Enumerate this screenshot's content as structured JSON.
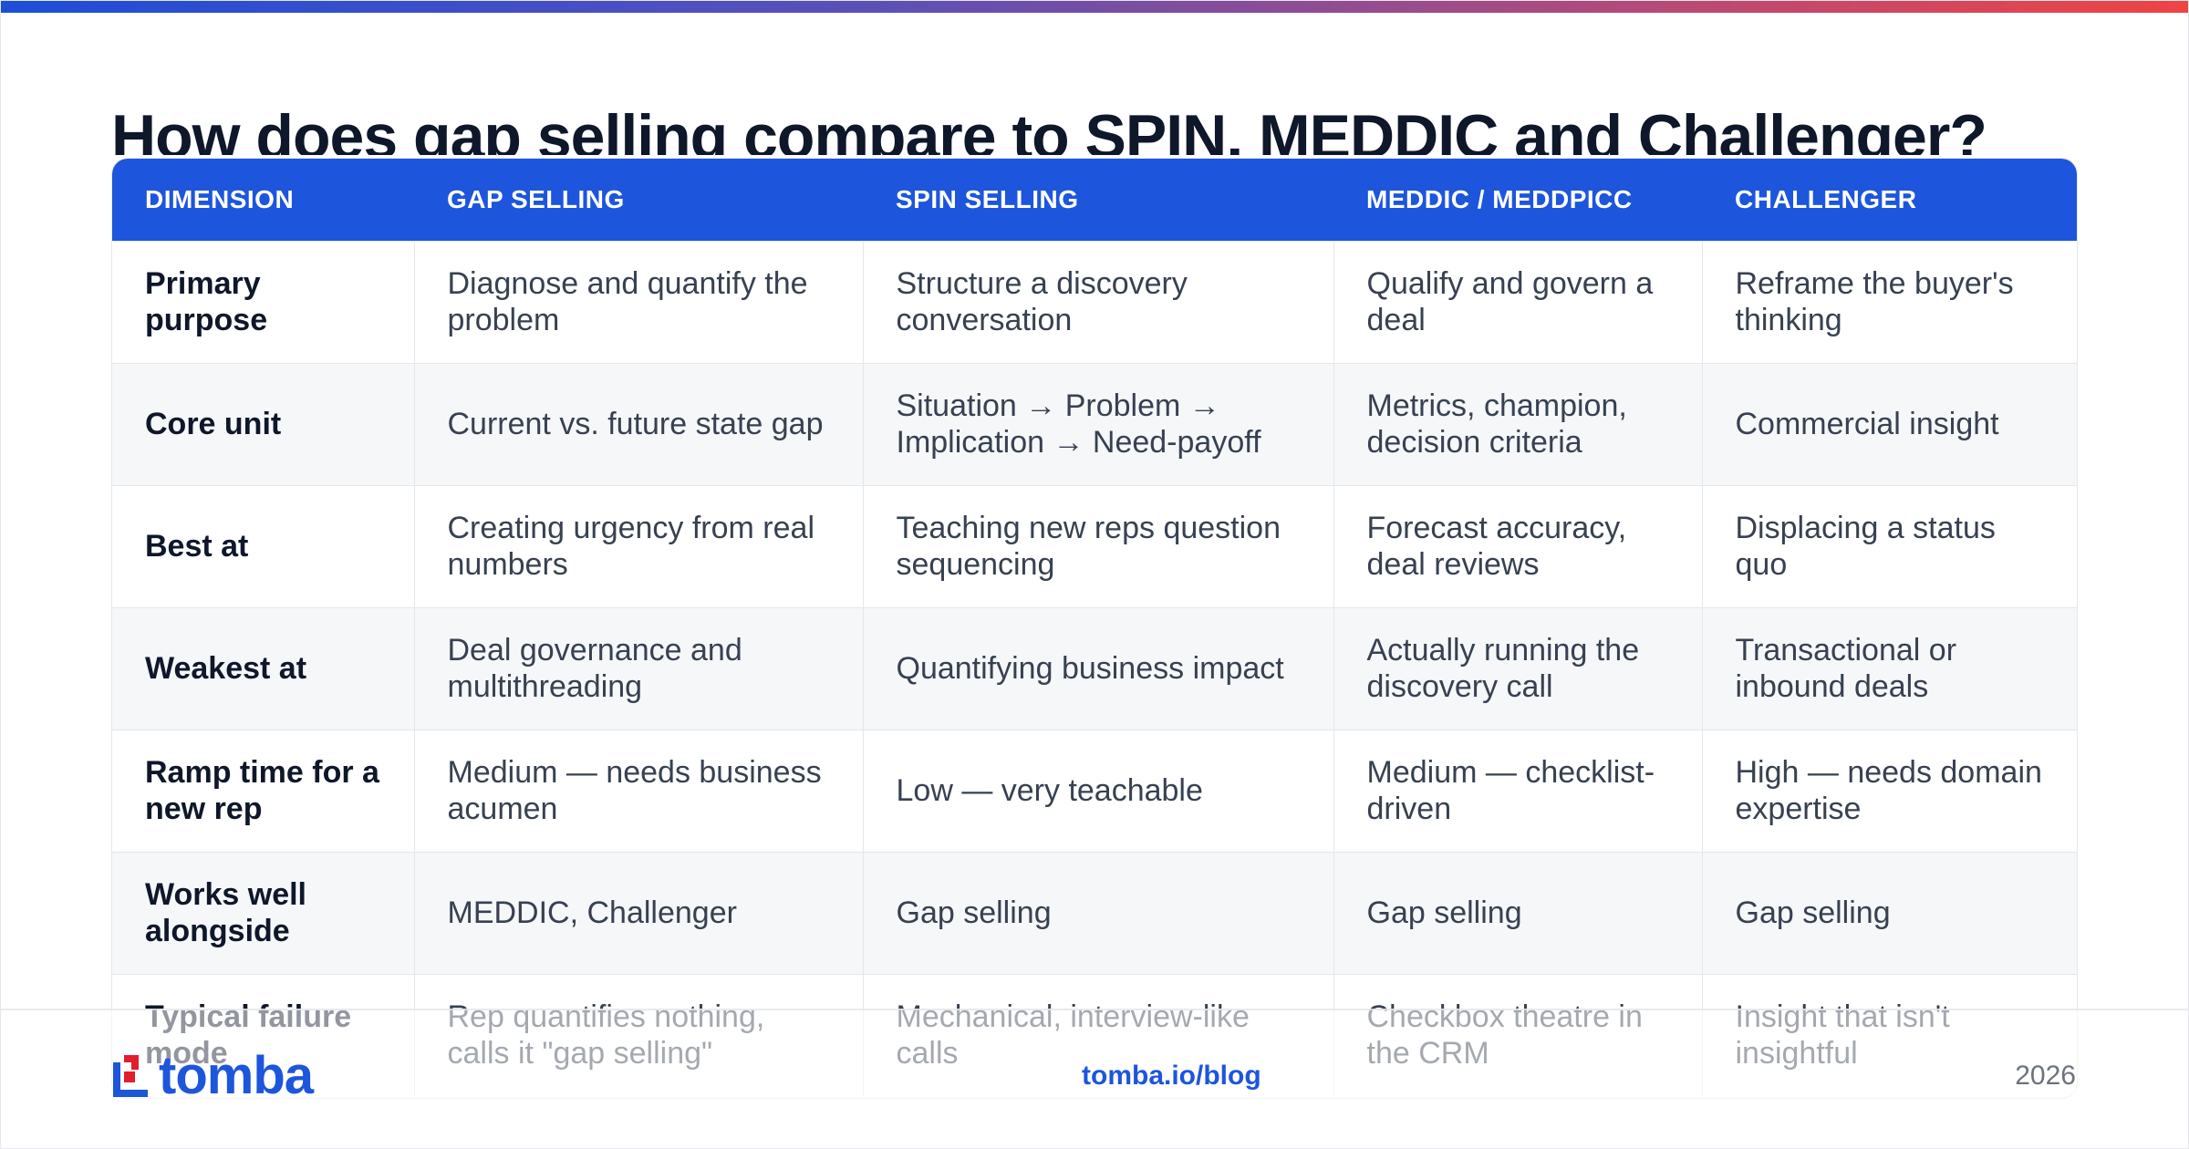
{
  "title": "How does gap selling compare to SPIN, MEDDIC and Challenger?",
  "table": {
    "headers": [
      "DIMENSION",
      "GAP SELLING",
      "SPIN SELLING",
      "MEDDIC / MEDDPICC",
      "CHALLENGER"
    ],
    "rows": [
      [
        "Primary purpose",
        "Diagnose and quantify the problem",
        "Structure a discovery conversation",
        "Qualify and govern a deal",
        "Reframe the buyer's thinking"
      ],
      [
        "Core unit",
        "Current vs. future state gap",
        "Situation → Problem → Implication → Need-payoff",
        "Metrics, champion, decision criteria",
        "Commercial insight"
      ],
      [
        "Best at",
        "Creating urgency from real numbers",
        "Teaching new reps question sequencing",
        "Forecast accuracy, deal reviews",
        "Displacing a status quo"
      ],
      [
        "Weakest at",
        "Deal governance and multithreading",
        "Quantifying business impact",
        "Actually running the discovery call",
        "Transactional or inbound deals"
      ],
      [
        "Ramp time for a new rep",
        "Medium — needs business acumen",
        "Low — very teachable",
        "Medium — checklist-driven",
        "High — needs domain expertise"
      ],
      [
        "Works well alongside",
        "MEDDIC, Challenger",
        "Gap selling",
        "Gap selling",
        "Gap selling"
      ],
      [
        "Typical failure mode",
        "Rep quantifies nothing, calls it \"gap selling\"",
        "Mechanical, interview-like calls",
        "Checkbox theatre in the CRM",
        "Insight that isn't insightful"
      ]
    ]
  },
  "footer": {
    "logo_text": "tomba",
    "link": "tomba.io/blog",
    "year": "2026"
  },
  "colors": {
    "accent": "#1d55dc",
    "logo_red": "#e11d2e",
    "header_text": "#ffffff",
    "stripe": "#f6f7f9"
  },
  "icons": {
    "logo_mark": "tomba-logo-icon"
  }
}
